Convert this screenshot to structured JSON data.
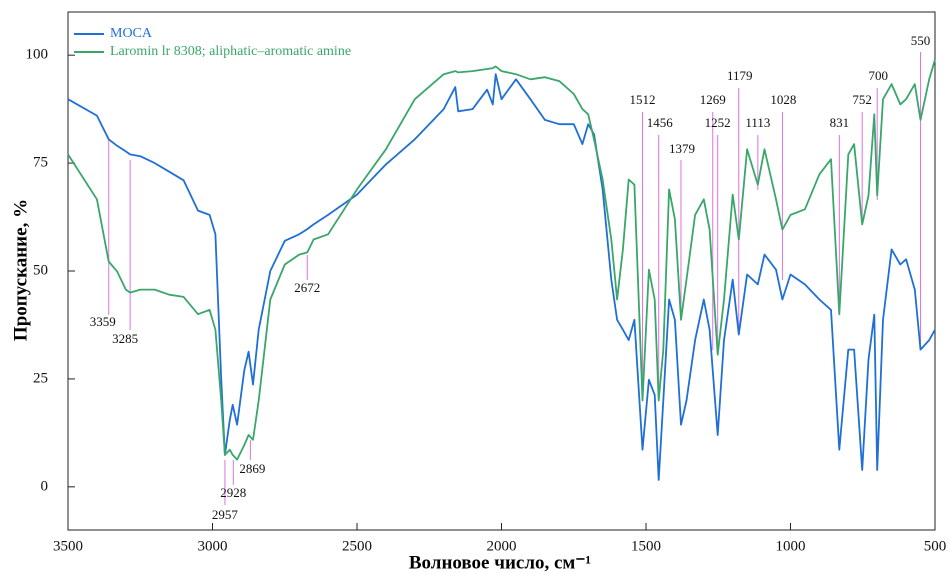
{
  "chart_data": {
    "type": "line",
    "x_label": "Волновое число, см⁻¹",
    "y_label": "Пропускание, %",
    "xlim": [
      3500,
      500
    ],
    "ylim": [
      -10,
      110
    ],
    "xticks": [
      3500,
      3000,
      2500,
      2000,
      1500,
      1000,
      500
    ],
    "yticks": [
      0,
      25,
      50,
      75,
      100
    ],
    "legend": "upper left",
    "x": [
      3500,
      3400,
      3359,
      3330,
      3300,
      3285,
      3250,
      3200,
      3150,
      3100,
      3050,
      3010,
      2990,
      2970,
      2957,
      2940,
      2930,
      2915,
      2890,
      2875,
      2860,
      2840,
      2800,
      2750,
      2700,
      2672,
      2650,
      2600,
      2500,
      2400,
      2300,
      2200,
      2160,
      2150,
      2100,
      2050,
      2030,
      2020,
      2000,
      1950,
      1900,
      1850,
      1800,
      1750,
      1720,
      1700,
      1680,
      1650,
      1620,
      1600,
      1580,
      1560,
      1540,
      1512,
      1490,
      1470,
      1456,
      1440,
      1420,
      1400,
      1379,
      1360,
      1330,
      1300,
      1280,
      1252,
      1230,
      1200,
      1179,
      1150,
      1113,
      1090,
      1050,
      1028,
      1000,
      950,
      900,
      860,
      831,
      800,
      780,
      752,
      730,
      710,
      700,
      680,
      650,
      620,
      600,
      570,
      550,
      520,
      500
    ],
    "series": [
      {
        "name": "MOCA",
        "color": "#1f6fd6",
        "values": [
          89.8,
          86,
          80.5,
          79,
          77.7,
          77,
          76.6,
          75,
          73,
          71,
          64,
          63,
          58.5,
          25,
          7.4,
          15.5,
          19,
          14.4,
          27,
          31.3,
          23.7,
          36.4,
          50,
          57,
          58.5,
          59.7,
          60.8,
          63,
          67.7,
          74.7,
          80.5,
          87.5,
          92.6,
          87,
          87.5,
          92,
          88.6,
          95.6,
          89.8,
          94.4,
          89.8,
          85,
          84,
          84,
          79.4,
          84,
          81.7,
          69,
          48,
          38.7,
          36.4,
          34,
          38.7,
          8.6,
          24.8,
          21.3,
          1.6,
          20,
          43.4,
          38.7,
          14.4,
          20,
          34,
          43.4,
          36.4,
          12,
          34,
          48,
          35.3,
          49.2,
          46.9,
          53.8,
          50.3,
          43.4,
          49.2,
          46.9,
          43.4,
          41,
          8.6,
          31.8,
          31.8,
          3.9,
          29.5,
          39.9,
          3.9,
          38.7,
          55,
          51.5,
          52.7,
          45.7,
          31.8,
          34,
          36.4
        ]
      },
      {
        "name": "Laromin lr 8308; aliphatic–aromatic amine",
        "color": "#3aa66a",
        "values": [
          77,
          66.6,
          52.2,
          49.9,
          45.7,
          45,
          45.7,
          45.7,
          44.5,
          44,
          40,
          41,
          36.4,
          20,
          7.4,
          8.6,
          7.4,
          6.3,
          9.7,
          12,
          10.9,
          20,
          43.4,
          51.5,
          53.8,
          54.3,
          57.3,
          58.5,
          68.9,
          78.2,
          89.8,
          95.6,
          96.3,
          96,
          96.3,
          96.8,
          97,
          97.4,
          96.3,
          95.6,
          94.4,
          94.9,
          94,
          91,
          87.5,
          86.3,
          80.5,
          71.2,
          57.3,
          43.4,
          55,
          71.2,
          70,
          20,
          50.3,
          43.4,
          20,
          31.8,
          68.9,
          62,
          38.7,
          48,
          63,
          66.6,
          59.6,
          30.6,
          43.4,
          67.7,
          57.3,
          78.2,
          70,
          78.2,
          66.6,
          59.6,
          63,
          64.3,
          72.4,
          75.9,
          40,
          77,
          79.4,
          60.8,
          67.5,
          86.3,
          67.5,
          89.8,
          93.3,
          88.6,
          89.8,
          93.3,
          85,
          94.4,
          99
        ]
      }
    ],
    "annotations": [
      {
        "label": "3359",
        "x": 3359
      },
      {
        "label": "3285",
        "x": 3285
      },
      {
        "label": "2957",
        "x": 2957
      },
      {
        "label": "2928",
        "x": 2928
      },
      {
        "label": "2869",
        "x": 2869
      },
      {
        "label": "2672",
        "x": 2672
      },
      {
        "label": "1512",
        "x": 1512
      },
      {
        "label": "1456",
        "x": 1456
      },
      {
        "label": "1379",
        "x": 1379
      },
      {
        "label": "1269",
        "x": 1269
      },
      {
        "label": "1252",
        "x": 1252
      },
      {
        "label": "1179",
        "x": 1179
      },
      {
        "label": "1113",
        "x": 1113
      },
      {
        "label": "1028",
        "x": 1028
      },
      {
        "label": "831",
        "x": 831
      },
      {
        "label": "752",
        "x": 752
      },
      {
        "label": "700",
        "x": 700
      },
      {
        "label": "550",
        "x": 550
      }
    ]
  }
}
